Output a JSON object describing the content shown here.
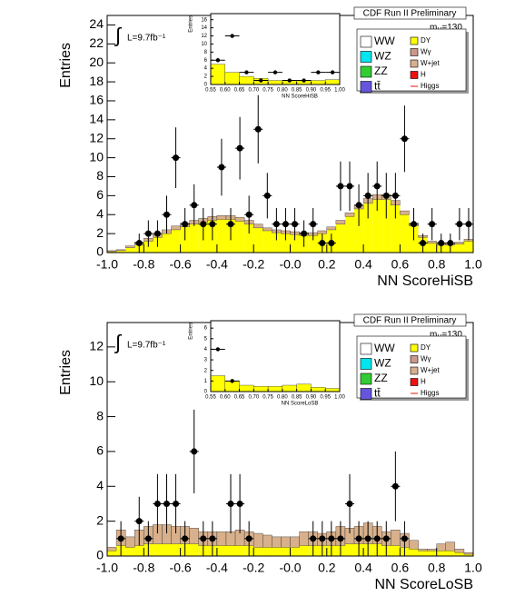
{
  "chart_data": [
    {
      "type": "histogram",
      "title": "CDF Run II Preliminary",
      "ylabel": "Entries",
      "xlabel": "NN ScoreHiSB",
      "integral": "∫",
      "luminosity": "L=9.7fb⁻¹",
      "mass": {
        "symbol": "m",
        "subscript": "H",
        "text": "=130"
      },
      "legend": [
        {
          "name": "WW",
          "color": "#ffffff",
          "marker": "box"
        },
        {
          "name": "WZ",
          "color": "#00e5ee",
          "marker": "box"
        },
        {
          "name": "ZZ",
          "color": "#33cc33",
          "marker": "box"
        },
        {
          "name": "tt̄",
          "color": "#6655dd",
          "marker": "box"
        },
        {
          "name": "DY",
          "color": "#ffff00",
          "marker": "box"
        },
        {
          "name": "Wγ",
          "color": "#cc9988",
          "marker": "box"
        },
        {
          "name": "W+jet",
          "color": "#d8b08c",
          "marker": "box"
        },
        {
          "name": "H",
          "color": "#ee1111",
          "marker": "box"
        },
        {
          "name": "Higgs",
          "color": "#ee1111",
          "marker": "line"
        }
      ],
      "bins": [
        -1,
        -0.95,
        -0.9,
        -0.85,
        -0.8,
        -0.75,
        -0.7,
        -0.65,
        -0.6,
        -0.55,
        -0.5,
        -0.45,
        -0.4,
        -0.35,
        -0.3,
        -0.25,
        -0.2,
        -0.15,
        -0.1,
        -0.05,
        0,
        0.05,
        0.1,
        0.15,
        0.2,
        0.25,
        0.3,
        0.35,
        0.4,
        0.45,
        0.5,
        0.55,
        0.6,
        0.65,
        0.7,
        0.75,
        0.8,
        0.85,
        0.9,
        0.95,
        1
      ],
      "xlim": [
        -1,
        1
      ],
      "xticks": [
        {
          "value": -1,
          "label": "-1.0"
        },
        -0.8,
        -0.6,
        -0.4,
        -0.2,
        {
          "value": 0,
          "label": "-0.0"
        },
        0.2,
        0.4,
        0.6,
        0.8,
        {
          "value": 1,
          "label": "1.0"
        }
      ],
      "ylim": [
        0,
        25
      ],
      "yticks": [
        0,
        2,
        4,
        6,
        8,
        10,
        12,
        14,
        16,
        18,
        20,
        22,
        24
      ],
      "series": [
        {
          "name": "DY",
          "color": "#ffff00",
          "values": [
            0.1,
            0.2,
            0.5,
            0.8,
            1.2,
            1.6,
            2.0,
            2.4,
            2.7,
            3.0,
            3.2,
            3.4,
            3.5,
            3.5,
            3.3,
            3.0,
            2.6,
            2.3,
            2.1,
            2.0,
            1.9,
            1.8,
            1.8,
            2.0,
            2.4,
            3.0,
            3.8,
            4.6,
            5.2,
            5.6,
            5.6,
            5.0,
            4.0,
            2.8,
            1.6,
            1.0,
            0.8,
            0.8,
            0.9,
            1.2
          ]
        },
        {
          "name": "W+jet",
          "color": "#d8b08c",
          "values": [
            0.1,
            0.1,
            0.2,
            0.3,
            0.3,
            0.3,
            0.4,
            0.4,
            0.4,
            0.4,
            0.4,
            0.4,
            0.4,
            0.4,
            0.4,
            0.4,
            0.4,
            0.3,
            0.3,
            0.3,
            0.3,
            0.3,
            0.3,
            0.3,
            0.3,
            0.4,
            0.4,
            0.4,
            0.5,
            0.5,
            0.5,
            0.5,
            0.4,
            0.3,
            0.2,
            0.2,
            0.2,
            0.2,
            0.2,
            0.2
          ]
        }
      ],
      "data": {
        "values": [
          null,
          null,
          null,
          1,
          2,
          2,
          4,
          10,
          3,
          5,
          3,
          3,
          9,
          3,
          11,
          4,
          13,
          6,
          3,
          3,
          3,
          2,
          3,
          1,
          1,
          7,
          7,
          5,
          6,
          7,
          6,
          6,
          12,
          3,
          1,
          3,
          1,
          1,
          3,
          3
        ],
        "errors": [
          null,
          null,
          null,
          1,
          1.4,
          1.4,
          2,
          3.2,
          1.7,
          2.2,
          1.7,
          1.7,
          3,
          1.7,
          3.3,
          2,
          3.6,
          2.4,
          1.7,
          1.7,
          1.7,
          1.4,
          1.7,
          1,
          1,
          2.6,
          2.6,
          2.2,
          2.4,
          2.6,
          2.4,
          2.4,
          3.5,
          1.7,
          1,
          1.7,
          1,
          1,
          1.7,
          1.7
        ]
      },
      "inset": {
        "type": "histogram",
        "ylabel": "Entries",
        "xlabel": "NN ScoreHiSB",
        "bins": [
          0.55,
          0.6,
          0.65,
          0.7,
          0.75,
          0.8,
          0.85,
          0.9,
          0.95,
          1
        ],
        "xlim": [
          0.55,
          1
        ],
        "xticks": [
          0.55,
          {
            "value": 0.6,
            "label": "0.60"
          },
          0.65,
          {
            "value": 0.7,
            "label": "0.70"
          },
          0.75,
          {
            "value": 0.8,
            "label": "0.80"
          },
          0.85,
          {
            "value": 0.9,
            "label": "0.90"
          },
          0.95,
          {
            "value": 1,
            "label": "1.00"
          }
        ],
        "ylim": [
          0,
          17.5
        ],
        "yticks": [
          0,
          2,
          4,
          6,
          8,
          10,
          12,
          14,
          16
        ],
        "series": [
          {
            "color": "#ffff00",
            "values": [
              5,
              3,
              2,
              1.5,
              1,
              1,
              1,
              1,
              1.2
            ]
          }
        ],
        "data": {
          "values": [
            6,
            12,
            3,
            1,
            3,
            1,
            1,
            3,
            3
          ]
        }
      }
    },
    {
      "type": "histogram",
      "title": "CDF Run II Preliminary",
      "ylabel": "Entries",
      "xlabel": "NN ScoreLoSB",
      "integral": "∫",
      "luminosity": "L=9.7fb⁻¹",
      "mass": {
        "symbol": "m",
        "subscript": "H",
        "text": "=130"
      },
      "legend": [
        {
          "name": "WW",
          "color": "#ffffff",
          "marker": "box"
        },
        {
          "name": "WZ",
          "color": "#00e5ee",
          "marker": "box"
        },
        {
          "name": "ZZ",
          "color": "#33cc33",
          "marker": "box"
        },
        {
          "name": "tt̄",
          "color": "#6655dd",
          "marker": "box"
        },
        {
          "name": "DY",
          "color": "#ffff00",
          "marker": "box"
        },
        {
          "name": "Wγ",
          "color": "#cc9988",
          "marker": "box"
        },
        {
          "name": "W+jet",
          "color": "#d8b08c",
          "marker": "box"
        },
        {
          "name": "H",
          "color": "#ee1111",
          "marker": "box"
        },
        {
          "name": "Higgs",
          "color": "#ee1111",
          "marker": "line"
        }
      ],
      "bins": [
        -1,
        -0.95,
        -0.9,
        -0.85,
        -0.8,
        -0.75,
        -0.7,
        -0.65,
        -0.6,
        -0.55,
        -0.5,
        -0.45,
        -0.4,
        -0.35,
        -0.3,
        -0.25,
        -0.2,
        -0.15,
        -0.1,
        -0.05,
        0,
        0.05,
        0.1,
        0.15,
        0.2,
        0.25,
        0.3,
        0.35,
        0.4,
        0.45,
        0.5,
        0.55,
        0.6,
        0.65,
        0.7,
        0.75,
        0.8,
        0.85,
        0.9,
        0.95,
        1
      ],
      "xlim": [
        -1,
        1
      ],
      "xticks": [
        {
          "value": -1,
          "label": "-1.0"
        },
        -0.8,
        -0.6,
        -0.4,
        -0.2,
        {
          "value": 0,
          "label": "-0.0"
        },
        0.2,
        0.4,
        0.6,
        0.8,
        {
          "value": 1,
          "label": "1.0"
        }
      ],
      "ylim": [
        0,
        13.4
      ],
      "yticks": [
        0,
        2,
        4,
        6,
        8,
        10,
        12
      ],
      "series": [
        {
          "name": "DY",
          "color": "#ffff00",
          "values": [
            0.3,
            0.6,
            0.5,
            0.6,
            0.7,
            0.7,
            0.7,
            0.7,
            0.7,
            0.7,
            0.6,
            0.6,
            0.6,
            0.6,
            0.6,
            0.6,
            0.5,
            0.5,
            0.5,
            0.5,
            0.5,
            0.6,
            0.6,
            0.6,
            0.6,
            0.6,
            0.7,
            0.7,
            0.7,
            0.7,
            0.6,
            0.6,
            0.5,
            0.4,
            0.3,
            0.3,
            0.3,
            0.3,
            0.2,
            0.1
          ]
        },
        {
          "name": "W+jet",
          "color": "#d8b08c",
          "values": [
            0.2,
            0.9,
            0.6,
            0.9,
            1.0,
            1.1,
            1.1,
            1.0,
            1.0,
            0.9,
            0.8,
            0.8,
            0.8,
            0.8,
            0.9,
            0.8,
            0.8,
            0.7,
            0.6,
            0.6,
            0.6,
            0.8,
            0.8,
            0.7,
            0.8,
            1.1,
            0.9,
            1.0,
            1.2,
            1.0,
            0.8,
            0.9,
            0.8,
            0.5,
            0.1,
            0.1,
            0.4,
            0.5,
            0.2,
            0.1
          ]
        }
      ],
      "data": {
        "values": [
          null,
          1,
          null,
          2,
          1,
          3,
          3,
          3,
          1,
          6,
          1,
          1,
          null,
          3,
          3,
          1,
          null,
          null,
          null,
          null,
          null,
          null,
          1,
          1,
          1,
          1,
          3,
          1,
          1,
          1,
          1,
          4,
          1,
          null,
          null,
          null,
          null,
          null,
          null,
          null
        ],
        "errors": [
          null,
          1,
          null,
          1.4,
          1,
          1.7,
          1.7,
          1.7,
          1,
          2.4,
          1,
          1,
          null,
          1.7,
          1.7,
          1,
          null,
          null,
          null,
          null,
          null,
          null,
          1,
          1,
          1,
          1,
          1.7,
          1,
          1,
          1,
          1,
          2,
          1,
          null,
          null,
          null,
          null,
          null,
          null,
          null
        ]
      },
      "inset": {
        "type": "histogram",
        "ylabel": "Entries",
        "xlabel": "NN ScoreLoSB",
        "bins": [
          0.55,
          0.6,
          0.65,
          0.7,
          0.75,
          0.8,
          0.85,
          0.9,
          0.95,
          1
        ],
        "xlim": [
          0.55,
          1
        ],
        "xticks": [
          0.55,
          {
            "value": 0.6,
            "label": "0.60"
          },
          0.65,
          {
            "value": 0.7,
            "label": "0.70"
          },
          0.75,
          {
            "value": 0.8,
            "label": "0.80"
          },
          0.85,
          {
            "value": 0.9,
            "label": "0.90"
          },
          0.95,
          {
            "value": 1,
            "label": "1.00"
          }
        ],
        "ylim": [
          0,
          6.7
        ],
        "yticks": [
          0,
          1,
          2,
          3,
          4,
          5,
          6
        ],
        "series": [
          {
            "color": "#ffff00",
            "values": [
              1.5,
              1,
              0.6,
              0.5,
              0.5,
              0.6,
              0.7,
              0.4,
              0.3
            ]
          }
        ],
        "data": {
          "values": [
            4,
            1,
            null,
            null,
            null,
            null,
            null,
            null,
            null
          ]
        }
      }
    }
  ]
}
